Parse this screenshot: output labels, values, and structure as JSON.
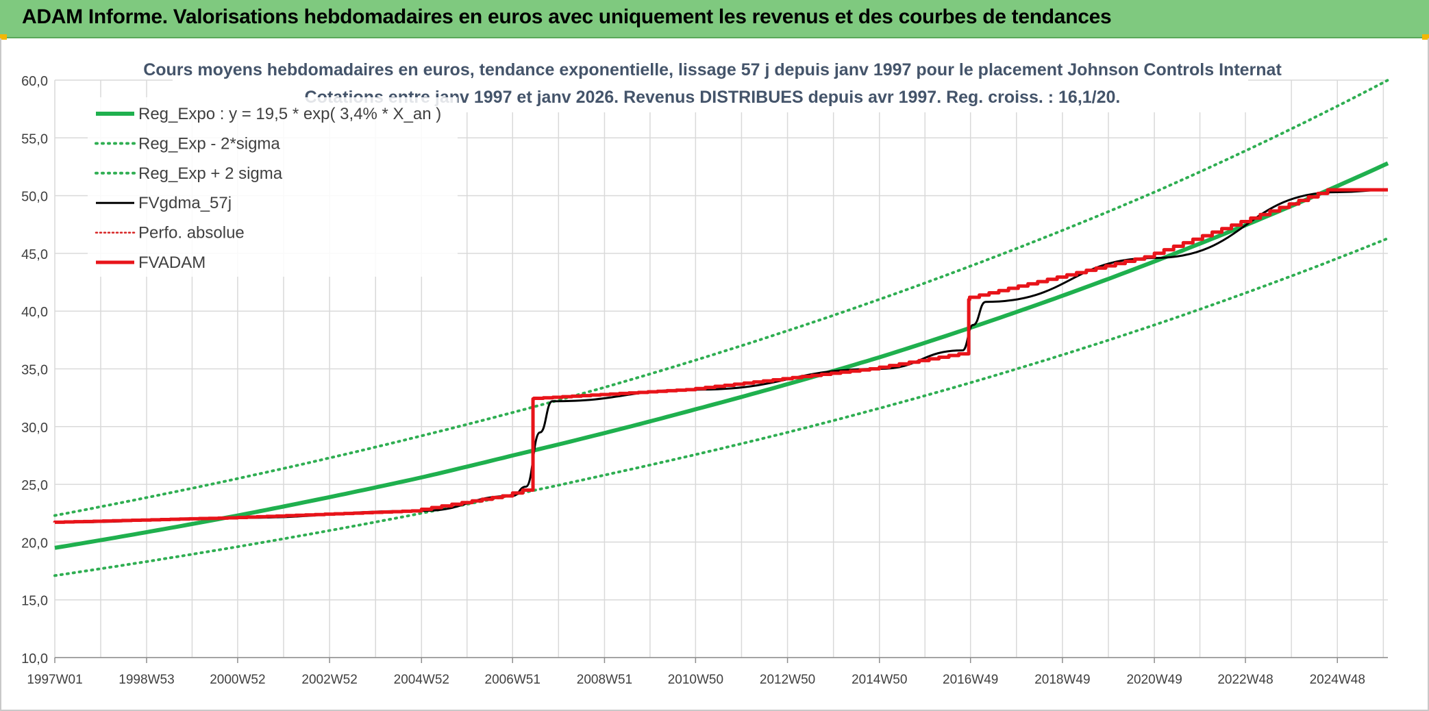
{
  "banner": {
    "title": "ADAM Informe. Valorisations hebdomadaires en euros avec uniquement les revenus et des courbes de tendances"
  },
  "colors": {
    "banner_bg": "#7fc97f",
    "reg_expo": "#1fb04e",
    "sigma": "#2fae52",
    "fv_gdma": "#000000",
    "perfo": "#d62020",
    "fvadam": "#e8141a",
    "grid": "#d9d9d9",
    "text": "#44546a"
  },
  "chart_data": {
    "type": "line",
    "title": "Cours moyens hebdomadaires en euros, tendance exponentielle, lissage 57 j depuis janv 1997 pour le placement Johnson Controls Internat",
    "subtitle": "Cotations entre janv 1997 et janv 2026. Revenus DISTRIBUES depuis avr 1997. Reg. croiss. : 16,1/20.",
    "xlabel": "",
    "ylabel": "",
    "x_range": [
      "1997W01",
      "2026W01"
    ],
    "x_ticks": [
      "1997W01",
      "1998W53",
      "2000W52",
      "2002W52",
      "2004W52",
      "2006W51",
      "2008W51",
      "2010W50",
      "2012W50",
      "2014W50",
      "2016W49",
      "2018W49",
      "2020W49",
      "2022W48",
      "2024W48"
    ],
    "ylim": [
      10,
      60
    ],
    "y_ticks": [
      "10,0",
      "15,0",
      "20,0",
      "25,0",
      "30,0",
      "35,0",
      "40,0",
      "45,0",
      "50,0",
      "55,0",
      "60,0"
    ],
    "grid": true,
    "legend_position": "top-left",
    "legend": [
      {
        "key": "reg_expo",
        "label": "Reg_Expo : y = 19,5 * exp( 3,4% *  X_an )",
        "style": "solid-thick"
      },
      {
        "key": "reg_minus",
        "label": "Reg_Exp - 2*sigma",
        "style": "dotted"
      },
      {
        "key": "reg_plus",
        "label": "Reg_Exp + 2 sigma",
        "style": "dotted"
      },
      {
        "key": "fv_gdma",
        "label": "FVgdma_57j",
        "style": "solid"
      },
      {
        "key": "perfo",
        "label": "Perfo. absolue",
        "style": "dotted-thin"
      },
      {
        "key": "fvadam",
        "label": "FVADAM",
        "style": "solid-thick"
      }
    ],
    "series": [
      {
        "name": "Reg_Expo : y = 19,5 * exp( 3,4% *  X_an )",
        "x": [
          "1997W01",
          "2000W52",
          "2004W52",
          "2006W51",
          "2010W50",
          "2014W50",
          "2020W49",
          "2026W01"
        ],
        "values": [
          19.5,
          22.3,
          25.6,
          27.5,
          31.5,
          36.0,
          44.3,
          52.8
        ]
      },
      {
        "name": "Reg_Exp - 2*sigma",
        "x": [
          "1997W01",
          "2000W52",
          "2004W52",
          "2008W51",
          "2012W50",
          "2016W49",
          "2020W49",
          "2026W01"
        ],
        "values": [
          17.1,
          19.6,
          22.5,
          25.8,
          29.5,
          33.8,
          38.8,
          46.3
        ]
      },
      {
        "name": "Reg_Exp + 2 sigma",
        "x": [
          "1997W01",
          "2000W52",
          "2004W52",
          "2008W51",
          "2012W50",
          "2016W49",
          "2020W49",
          "2026W01"
        ],
        "values": [
          22.3,
          25.5,
          29.2,
          33.4,
          38.3,
          43.9,
          50.3,
          60.0
        ]
      },
      {
        "name": "FVgdma_57j",
        "x": [
          "1997W01",
          "2000W52",
          "2004W52",
          "2006W51",
          "2007W14",
          "2007W30",
          "2007W44",
          "2010W50",
          "2014W50",
          "2016W40",
          "2016W52",
          "2017W14",
          "2020W49",
          "2024W48",
          "2026W01"
        ],
        "values": [
          21.7,
          22.1,
          22.7,
          24.0,
          24.8,
          29.5,
          32.2,
          33.2,
          35.0,
          36.6,
          38.8,
          40.8,
          44.6,
          50.3,
          50.5
        ]
      },
      {
        "name": "FVADAM",
        "x": [
          "1997W01",
          "2000W52",
          "2004W52",
          "2006W51",
          "2007W22",
          "2007W23",
          "2010W50",
          "2014W50",
          "2016W47",
          "2016W48",
          "2020W49",
          "2024W48",
          "2026W01"
        ],
        "values": [
          21.7,
          22.1,
          22.7,
          24.0,
          24.5,
          32.4,
          33.2,
          35.0,
          36.3,
          41.0,
          44.7,
          50.5,
          50.5
        ]
      }
    ]
  }
}
